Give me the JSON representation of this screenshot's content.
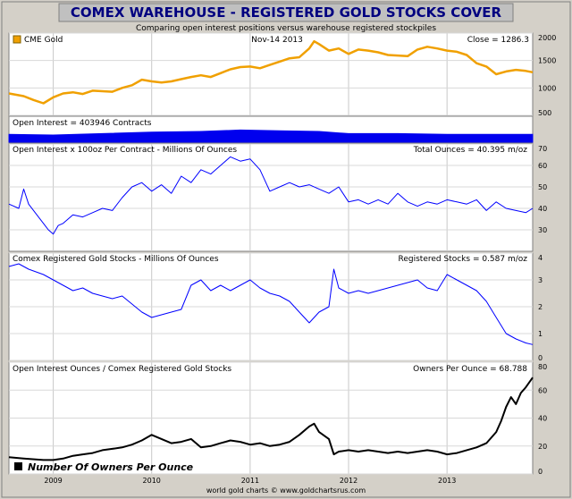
{
  "header": {
    "title": "COMEX WAREHOUSE - REGISTERED GOLD STOCKS COVER",
    "subtitle": "Comparing open interest positions versus warehouse registered stockpiles"
  },
  "footer": {
    "credit": "world gold charts © www.goldchartsrus.com"
  },
  "colors": {
    "background": "#d4d0c8",
    "title_bar": "#c0c0c0",
    "title_text": "#000080",
    "gold": "#f0a000",
    "blue": "#0000ff",
    "fill": "#0000ee",
    "black": "#000000"
  },
  "chart_data": [
    {
      "type": "line",
      "panel": "gold_price",
      "legend": "CME Gold",
      "date_label": "Nov-14  2013",
      "stat_label": "Close = 1286.3",
      "ylim": [
        500,
        2000
      ],
      "yticks": [
        "500",
        "1000",
        "1500",
        "2000"
      ],
      "x": [
        2008.55,
        2008.7,
        2008.8,
        2008.9,
        2009.0,
        2009.1,
        2009.2,
        2009.3,
        2009.4,
        2009.5,
        2009.6,
        2009.7,
        2009.8,
        2009.9,
        2010.0,
        2010.1,
        2010.2,
        2010.3,
        2010.4,
        2010.5,
        2010.6,
        2010.7,
        2010.8,
        2010.9,
        2011.0,
        2011.1,
        2011.2,
        2011.3,
        2011.4,
        2011.5,
        2011.6,
        2011.65,
        2011.7,
        2011.8,
        2011.9,
        2012.0,
        2012.1,
        2012.2,
        2012.3,
        2012.4,
        2012.5,
        2012.6,
        2012.7,
        2012.8,
        2012.9,
        2013.0,
        2013.1,
        2013.2,
        2013.3,
        2013.4,
        2013.5,
        2013.6,
        2013.7,
        2013.8,
        2013.87
      ],
      "values": [
        900,
        850,
        780,
        720,
        830,
        900,
        920,
        890,
        950,
        940,
        930,
        1000,
        1050,
        1150,
        1120,
        1100,
        1120,
        1160,
        1200,
        1230,
        1200,
        1270,
        1340,
        1380,
        1390,
        1360,
        1420,
        1480,
        1540,
        1560,
        1720,
        1850,
        1800,
        1680,
        1720,
        1620,
        1700,
        1680,
        1650,
        1600,
        1590,
        1580,
        1700,
        1750,
        1720,
        1680,
        1660,
        1600,
        1450,
        1390,
        1250,
        1300,
        1330,
        1310,
        1286
      ]
    },
    {
      "type": "area",
      "panel": "open_interest_contracts",
      "legend": "Open Interest = 403946 Contracts",
      "x": [
        2008.55,
        2009.0,
        2009.5,
        2010.0,
        2010.5,
        2010.9,
        2011.3,
        2011.7,
        2012.0,
        2012.5,
        2013.0,
        2013.5,
        2013.87
      ],
      "values": [
        0.55,
        0.5,
        0.6,
        0.7,
        0.75,
        0.85,
        0.8,
        0.75,
        0.6,
        0.6,
        0.55,
        0.55,
        0.55
      ]
    },
    {
      "type": "line",
      "panel": "open_interest_ounces",
      "legend": "Open Interest x 100oz Per Contract - Millions Of Ounces",
      "stat_label": "Total Ounces = 40.395 m/oz",
      "ylim": [
        20,
        70
      ],
      "yticks": [
        "30",
        "40",
        "50",
        "60",
        "70"
      ],
      "x": [
        2008.55,
        2008.65,
        2008.7,
        2008.75,
        2008.85,
        2008.9,
        2008.95,
        2009.0,
        2009.05,
        2009.1,
        2009.2,
        2009.3,
        2009.4,
        2009.5,
        2009.6,
        2009.7,
        2009.8,
        2009.9,
        2010.0,
        2010.1,
        2010.2,
        2010.3,
        2010.4,
        2010.5,
        2010.6,
        2010.7,
        2010.8,
        2010.9,
        2011.0,
        2011.1,
        2011.2,
        2011.3,
        2011.4,
        2011.5,
        2011.6,
        2011.7,
        2011.8,
        2011.9,
        2012.0,
        2012.1,
        2012.2,
        2012.3,
        2012.4,
        2012.5,
        2012.6,
        2012.7,
        2012.8,
        2012.9,
        2013.0,
        2013.1,
        2013.2,
        2013.3,
        2013.4,
        2013.5,
        2013.6,
        2013.7,
        2013.8,
        2013.87
      ],
      "values": [
        42,
        40,
        49,
        42,
        36,
        33,
        30,
        28,
        32,
        33,
        37,
        36,
        38,
        40,
        39,
        45,
        50,
        52,
        48,
        51,
        47,
        55,
        52,
        58,
        56,
        60,
        64,
        62,
        63,
        58,
        48,
        50,
        52,
        50,
        51,
        49,
        47,
        50,
        43,
        44,
        42,
        44,
        42,
        47,
        43,
        41,
        43,
        42,
        44,
        43,
        42,
        44,
        39,
        43,
        40,
        39,
        38,
        40
      ]
    },
    {
      "type": "line",
      "panel": "registered_stocks",
      "legend": "Comex Registered Gold Stocks - Millions Of Ounces",
      "stat_label": "Registered Stocks = 0.587 m/oz",
      "ylim": [
        0,
        4
      ],
      "yticks": [
        "0",
        "1",
        "2",
        "3",
        "4"
      ],
      "x": [
        2008.55,
        2008.65,
        2008.75,
        2008.9,
        2009.0,
        2009.1,
        2009.2,
        2009.3,
        2009.4,
        2009.5,
        2009.6,
        2009.7,
        2009.8,
        2009.9,
        2010.0,
        2010.1,
        2010.2,
        2010.3,
        2010.4,
        2010.5,
        2010.6,
        2010.7,
        2010.8,
        2010.9,
        2011.0,
        2011.1,
        2011.2,
        2011.3,
        2011.4,
        2011.5,
        2011.6,
        2011.7,
        2011.8,
        2011.85,
        2011.9,
        2012.0,
        2012.1,
        2012.2,
        2012.3,
        2012.4,
        2012.5,
        2012.6,
        2012.7,
        2012.8,
        2012.9,
        2013.0,
        2013.1,
        2013.2,
        2013.3,
        2013.4,
        2013.5,
        2013.6,
        2013.7,
        2013.8,
        2013.87
      ],
      "values": [
        3.5,
        3.6,
        3.4,
        3.2,
        3.0,
        2.8,
        2.6,
        2.7,
        2.5,
        2.4,
        2.3,
        2.4,
        2.1,
        1.8,
        1.6,
        1.7,
        1.8,
        1.9,
        2.8,
        3.0,
        2.6,
        2.8,
        2.6,
        2.8,
        3.0,
        2.7,
        2.5,
        2.4,
        2.2,
        1.8,
        1.4,
        1.8,
        2.0,
        3.4,
        2.7,
        2.5,
        2.6,
        2.5,
        2.6,
        2.7,
        2.8,
        2.9,
        3.0,
        2.7,
        2.6,
        3.2,
        3.0,
        2.8,
        2.6,
        2.2,
        1.6,
        1.0,
        0.8,
        0.65,
        0.59
      ]
    },
    {
      "type": "line",
      "panel": "owners_per_ounce",
      "legend": "Open Interest Ounces / Comex Registered Gold Stocks",
      "stat_label": "Owners Per Ounce = 68.788",
      "series_label": "Number Of Owners Per Ounce",
      "ylim": [
        0,
        80
      ],
      "yticks": [
        "0",
        "20",
        "40",
        "60",
        "80"
      ],
      "xticks": [
        "2009",
        "2010",
        "2011",
        "2012",
        "2013"
      ],
      "x": [
        2008.55,
        2008.7,
        2008.9,
        2009.0,
        2009.1,
        2009.2,
        2009.3,
        2009.4,
        2009.5,
        2009.6,
        2009.7,
        2009.8,
        2009.9,
        2010.0,
        2010.1,
        2010.2,
        2010.3,
        2010.4,
        2010.5,
        2010.6,
        2010.7,
        2010.8,
        2010.9,
        2011.0,
        2011.1,
        2011.2,
        2011.3,
        2011.4,
        2011.5,
        2011.6,
        2011.65,
        2011.7,
        2011.8,
        2011.85,
        2011.9,
        2012.0,
        2012.1,
        2012.2,
        2012.3,
        2012.4,
        2012.5,
        2012.6,
        2012.7,
        2012.8,
        2012.9,
        2013.0,
        2013.1,
        2013.2,
        2013.3,
        2013.4,
        2013.5,
        2013.55,
        2013.6,
        2013.65,
        2013.7,
        2013.75,
        2013.8,
        2013.87
      ],
      "values": [
        12,
        11,
        10,
        10,
        11,
        13,
        14,
        15,
        17,
        18,
        19,
        21,
        24,
        28,
        25,
        22,
        23,
        25,
        19,
        20,
        22,
        24,
        23,
        21,
        22,
        20,
        21,
        23,
        28,
        34,
        36,
        30,
        25,
        14,
        16,
        17,
        16,
        17,
        16,
        15,
        16,
        15,
        16,
        17,
        16,
        14,
        15,
        17,
        19,
        22,
        30,
        38,
        48,
        55,
        50,
        58,
        62,
        69
      ]
    }
  ]
}
